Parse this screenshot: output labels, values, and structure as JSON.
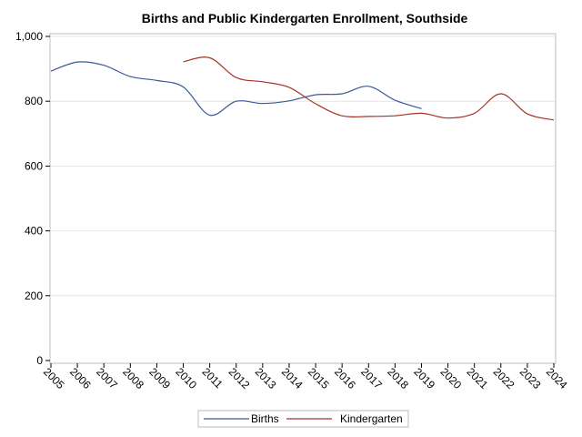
{
  "chart_data": {
    "type": "line",
    "title": "Births and Public Kindergarten Enrollment, Southside",
    "xlabel": "",
    "ylabel": "",
    "x": [
      "2005",
      "2006",
      "2007",
      "2008",
      "2009",
      "2010",
      "2011",
      "2012",
      "2013",
      "2014",
      "2015",
      "2016",
      "2017",
      "2018",
      "2019",
      "2020",
      "2021",
      "2022",
      "2023",
      "2024"
    ],
    "ylim": [
      0,
      1000
    ],
    "yticks": [
      0,
      200,
      400,
      600,
      800,
      1000
    ],
    "ytick_labels": [
      "0",
      "200",
      "400",
      "600",
      "800",
      "1,000"
    ],
    "grid": "horizontal",
    "legend": "bottom",
    "series": [
      {
        "name": "Births",
        "color": "#3b5998",
        "values": [
          893,
          921,
          911,
          876,
          864,
          844,
          757,
          800,
          793,
          801,
          820,
          823,
          846,
          803,
          777,
          null,
          null,
          null,
          null,
          null
        ]
      },
      {
        "name": "Kindergarten",
        "color": "#a93226",
        "values": [
          null,
          null,
          null,
          null,
          null,
          922,
          934,
          873,
          860,
          843,
          792,
          755,
          753,
          755,
          763,
          748,
          763,
          823,
          761,
          742
        ]
      }
    ]
  }
}
